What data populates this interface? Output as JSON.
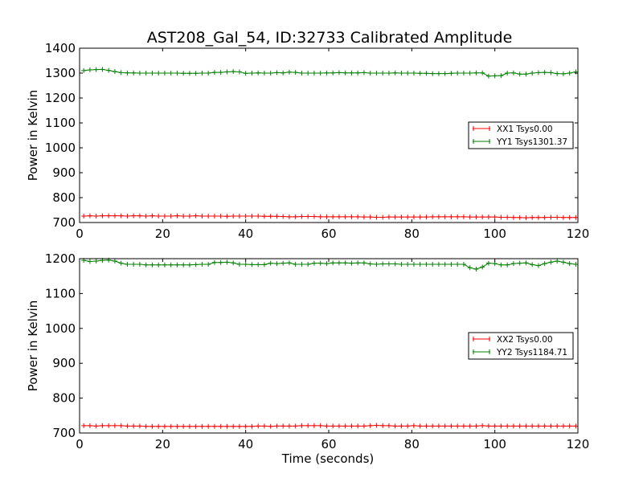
{
  "title": "AST208_Gal_54, ID:32733 Calibrated Amplitude",
  "colors": {
    "xx": "#ff0000",
    "yy": "#008000"
  },
  "chart_data": [
    {
      "type": "line",
      "title": "AST208_Gal_54, ID:32733 Calibrated Amplitude",
      "xlabel": "",
      "ylabel": "Power in Kelvin",
      "xlim": [
        0,
        120
      ],
      "ylim": [
        700,
        1400
      ],
      "xticks": [
        "0",
        "20",
        "40",
        "60",
        "80",
        "100",
        "120"
      ],
      "yticks": [
        "700",
        "800",
        "900",
        "1000",
        "1100",
        "1200",
        "1300",
        "1400"
      ],
      "legend_position": "center-right",
      "x_start": 1,
      "x_step": 1.5,
      "series": [
        {
          "name": "XX1 Tsys0.00",
          "color": "#ff0000",
          "values": [
            726,
            727,
            726,
            727,
            727,
            727,
            727,
            726,
            727,
            727,
            726,
            727,
            726,
            726,
            726,
            727,
            726,
            726,
            727,
            726,
            726,
            726,
            726,
            725,
            726,
            726,
            726,
            726,
            726,
            725,
            725,
            725,
            724,
            723,
            723,
            724,
            724,
            724,
            723,
            723,
            723,
            723,
            723,
            723,
            723,
            722,
            722,
            721,
            721,
            722,
            722,
            722,
            722,
            722,
            722,
            722,
            723,
            723,
            723,
            723,
            723,
            723,
            722,
            722,
            722,
            722,
            722,
            721,
            721,
            720,
            720,
            719,
            720,
            720,
            720,
            721,
            721,
            720,
            720,
            720
          ]
        },
        {
          "name": "YY1 Tsys1301.37",
          "color": "#008000",
          "values": [
            1310,
            1313,
            1314,
            1315,
            1311,
            1306,
            1302,
            1301,
            1301,
            1300,
            1300,
            1300,
            1300,
            1300,
            1300,
            1300,
            1299,
            1299,
            1299,
            1300,
            1300,
            1303,
            1303,
            1305,
            1306,
            1305,
            1299,
            1300,
            1301,
            1300,
            1300,
            1302,
            1301,
            1304,
            1303,
            1300,
            1300,
            1300,
            1300,
            1301,
            1301,
            1302,
            1301,
            1301,
            1301,
            1302,
            1300,
            1300,
            1300,
            1300,
            1301,
            1300,
            1300,
            1300,
            1299,
            1299,
            1298,
            1298,
            1298,
            1299,
            1300,
            1300,
            1300,
            1301,
            1301,
            1288,
            1289,
            1290,
            1300,
            1301,
            1296,
            1296,
            1300,
            1302,
            1303,
            1302,
            1298,
            1297,
            1300,
            1305
          ]
        }
      ]
    },
    {
      "type": "line",
      "title": "",
      "xlabel": "Time (seconds)",
      "ylabel": "Power in Kelvin",
      "xlim": [
        0,
        120
      ],
      "ylim": [
        700,
        1200
      ],
      "xticks": [
        "0",
        "20",
        "40",
        "60",
        "80",
        "100",
        "120"
      ],
      "yticks": [
        "700",
        "800",
        "900",
        "1000",
        "1100",
        "1200"
      ],
      "legend_position": "center-right",
      "x_start": 1,
      "x_step": 1.5,
      "series": [
        {
          "name": "XX2 Tsys0.00",
          "color": "#ff0000",
          "values": [
            721,
            721,
            720,
            721,
            721,
            721,
            721,
            720,
            720,
            720,
            719,
            719,
            719,
            719,
            719,
            719,
            719,
            719,
            719,
            719,
            719,
            719,
            719,
            719,
            719,
            719,
            719,
            719,
            720,
            720,
            719,
            720,
            720,
            720,
            720,
            721,
            721,
            721,
            721,
            720,
            720,
            720,
            720,
            720,
            720,
            720,
            721,
            722,
            721,
            721,
            720,
            720,
            720,
            721,
            720,
            720,
            720,
            720,
            720,
            720,
            720,
            720,
            720,
            720,
            721,
            720,
            720,
            720,
            720,
            720,
            720,
            720,
            720,
            720,
            720,
            720,
            720,
            720,
            720,
            720
          ]
        },
        {
          "name": "YY2 Tsys1184.71",
          "color": "#008000",
          "values": [
            1195,
            1192,
            1193,
            1195,
            1196,
            1193,
            1187,
            1184,
            1184,
            1184,
            1182,
            1182,
            1182,
            1182,
            1182,
            1182,
            1182,
            1182,
            1183,
            1184,
            1184,
            1189,
            1189,
            1190,
            1188,
            1184,
            1184,
            1183,
            1183,
            1183,
            1187,
            1186,
            1187,
            1188,
            1184,
            1184,
            1184,
            1187,
            1187,
            1186,
            1188,
            1188,
            1188,
            1187,
            1188,
            1188,
            1185,
            1184,
            1185,
            1185,
            1185,
            1184,
            1184,
            1184,
            1184,
            1184,
            1184,
            1184,
            1184,
            1184,
            1184,
            1184,
            1174,
            1170,
            1176,
            1187,
            1186,
            1182,
            1182,
            1186,
            1187,
            1188,
            1183,
            1180,
            1186,
            1190,
            1193,
            1190,
            1186,
            1184
          ]
        }
      ]
    }
  ]
}
